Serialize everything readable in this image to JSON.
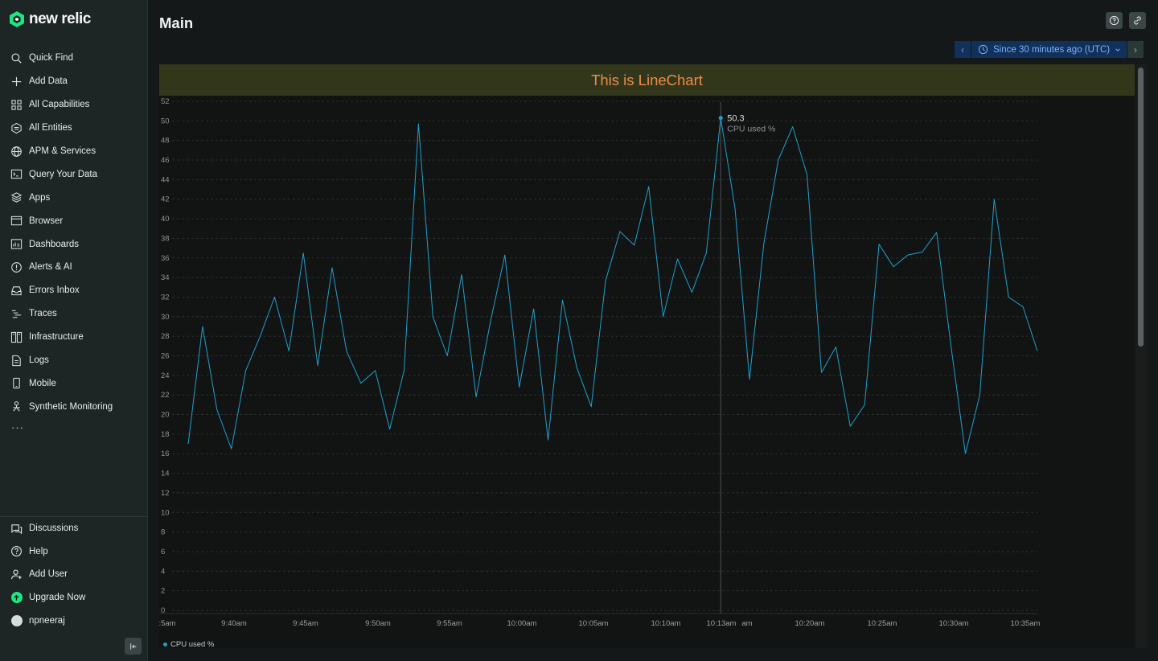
{
  "brand": {
    "name": "new relic"
  },
  "nav": {
    "items": [
      {
        "label": "Quick Find",
        "icon": "search-icon"
      },
      {
        "label": "Add Data",
        "icon": "plus-icon"
      },
      {
        "label": "All Capabilities",
        "icon": "grid-icon"
      },
      {
        "label": "All Entities",
        "icon": "entities-icon"
      },
      {
        "label": "APM & Services",
        "icon": "globe-icon"
      },
      {
        "label": "Query Your Data",
        "icon": "terminal-icon"
      },
      {
        "label": "Apps",
        "icon": "layers-icon"
      },
      {
        "label": "Browser",
        "icon": "browser-icon"
      },
      {
        "label": "Dashboards",
        "icon": "dashboard-icon"
      },
      {
        "label": "Alerts & AI",
        "icon": "alert-icon"
      },
      {
        "label": "Errors Inbox",
        "icon": "inbox-icon"
      },
      {
        "label": "Traces",
        "icon": "traces-icon"
      },
      {
        "label": "Infrastructure",
        "icon": "infrastructure-icon"
      },
      {
        "label": "Logs",
        "icon": "logs-icon"
      },
      {
        "label": "Mobile",
        "icon": "mobile-icon"
      },
      {
        "label": "Synthetic Monitoring",
        "icon": "synthetic-icon"
      }
    ],
    "more": "···"
  },
  "bottom_nav": {
    "discussions": "Discussions",
    "help": "Help",
    "add_user": "Add User",
    "upgrade": "Upgrade Now",
    "user": "npneeraj"
  },
  "page": {
    "title": "Main"
  },
  "time_picker": {
    "label": "Since 30 minutes ago (UTC)"
  },
  "widget": {
    "title": "This is LineChart"
  },
  "tooltip": {
    "value": "50.3",
    "series": "CPU used %",
    "time": "10:13am"
  },
  "colors": {
    "series": "#21a0cc",
    "banner_bg": "#32371b",
    "banner_text": "#f08a48",
    "accent": "#1ce783"
  },
  "chart_data": {
    "type": "line",
    "title": "This is LineChart",
    "ylim": [
      0,
      52
    ],
    "yticks": [
      0,
      2,
      4,
      6,
      8,
      10,
      12,
      14,
      16,
      18,
      20,
      22,
      24,
      26,
      28,
      30,
      32,
      34,
      36,
      38,
      40,
      42,
      44,
      46,
      48,
      50,
      52
    ],
    "grid": true,
    "legend_position": "bottom-left",
    "xtick_labels": [
      ":5am",
      "9:40am",
      "9:45am",
      "9:50am",
      "9:55am",
      "10:00am",
      "10:05am",
      "10:10am",
      "10:13am",
      "am",
      "10:20am",
      "10:25am",
      "10:30am",
      "10:35am"
    ],
    "series": [
      {
        "name": "CPU used %",
        "color": "#21a0cc",
        "values": [
          17.0,
          29.0,
          20.5,
          16.5,
          24.5,
          28.0,
          32.0,
          26.5,
          36.5,
          25.0,
          35.0,
          26.5,
          23.2,
          24.5,
          18.5,
          24.5,
          49.7,
          30.0,
          26.0,
          34.3,
          21.8,
          29.5,
          36.3,
          22.8,
          30.8,
          17.4,
          31.7,
          24.8,
          20.8,
          33.7,
          38.7,
          37.3,
          43.3,
          30.0,
          35.9,
          32.5,
          36.5,
          50.3,
          41.0,
          23.6,
          37.5,
          46.0,
          49.4,
          44.5,
          24.3,
          26.9,
          18.8,
          21.0,
          37.4,
          35.1,
          36.3,
          36.6,
          38.6,
          27.0,
          16.0,
          22.0,
          42.0,
          32.0,
          31.0,
          26.5
        ]
      }
    ]
  }
}
